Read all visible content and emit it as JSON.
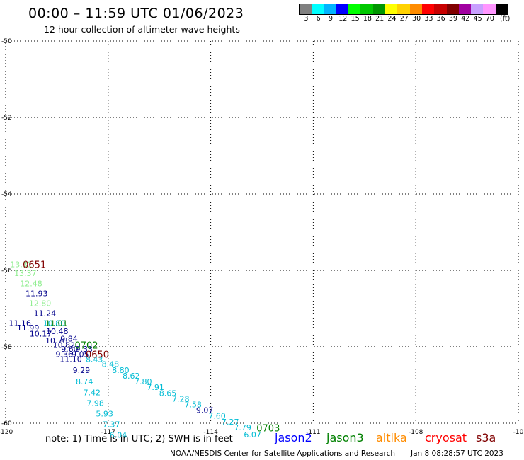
{
  "title": "00:00 – 11:59 UTC 01/06/2023",
  "subtitle": "12 hour collection of altimeter wave heights",
  "legend": {
    "colors": [
      "#808080",
      "#00ffff",
      "#00b4ff",
      "#0000ff",
      "#00ff00",
      "#00c800",
      "#009600",
      "#ffff00",
      "#ffd200",
      "#ff8c00",
      "#ff0000",
      "#c80000",
      "#800000",
      "#a000a0",
      "#c8a0ff",
      "#ff96ff",
      "#000000"
    ],
    "labels": [
      "3",
      "6",
      "9",
      "12",
      "15",
      "18",
      "21",
      "24",
      "27",
      "30",
      "33",
      "36",
      "39",
      "42",
      "45",
      "70",
      "(ft)"
    ]
  },
  "axes": {
    "x_ticks": [
      "-120",
      "-117",
      "-114",
      "-111",
      "-108",
      "-10"
    ],
    "y_ticks": [
      "-50",
      "-52",
      "-54",
      "-56",
      "-58",
      "-60"
    ]
  },
  "map_data": {
    "readings": [
      {
        "text": "13.31",
        "color": "#90ee90",
        "lon": -119.87,
        "lat": -55.84
      },
      {
        "text": "13.37",
        "color": "#90ee90",
        "lon": -119.75,
        "lat": -56.07
      },
      {
        "text": "12.48",
        "color": "#90ee90",
        "lon": -119.58,
        "lat": -56.34
      },
      {
        "text": "11.93",
        "color": "#00008b",
        "lon": -119.42,
        "lat": -56.6
      },
      {
        "text": "12.80",
        "color": "#90ee90",
        "lon": -119.32,
        "lat": -56.86
      },
      {
        "text": "11.24",
        "color": "#00008b",
        "lon": -119.18,
        "lat": -57.12
      },
      {
        "text": "11.16",
        "color": "#00008b",
        "lon": -119.91,
        "lat": -57.38
      },
      {
        "text": "10.80",
        "color": "#00bcd4",
        "lon": -118.91,
        "lat": -57.38
      },
      {
        "text": "11.01",
        "color": "#008000",
        "lon": -118.84,
        "lat": -57.38
      },
      {
        "text": "11.99",
        "color": "#00008b",
        "lon": -119.67,
        "lat": -57.5
      },
      {
        "text": "10.48",
        "color": "#00008b",
        "lon": -118.82,
        "lat": -57.59
      },
      {
        "text": "10.17",
        "color": "#00008b",
        "lon": -119.3,
        "lat": -57.66
      },
      {
        "text": "10.78",
        "color": "#00008b",
        "lon": -118.84,
        "lat": -57.83
      },
      {
        "text": "9.84",
        "color": "#00008b",
        "lon": -118.4,
        "lat": -57.79
      },
      {
        "text": "10.82",
        "color": "#00008b",
        "lon": -118.62,
        "lat": -57.95
      },
      {
        "text": "9.60",
        "color": "#00008b",
        "lon": -118.38,
        "lat": -58.06
      },
      {
        "text": "9.33",
        "color": "#00008b",
        "lon": -117.96,
        "lat": -58.06
      },
      {
        "text": "9.36",
        "color": "#00008b",
        "lon": -118.54,
        "lat": -58.19
      },
      {
        "text": "9.05",
        "color": "#00008b",
        "lon": -118.07,
        "lat": -58.19
      },
      {
        "text": "8.43",
        "color": "#00bcd4",
        "lon": -117.66,
        "lat": -58.32
      },
      {
        "text": "8.48",
        "color": "#00bcd4",
        "lon": -117.19,
        "lat": -58.45
      },
      {
        "text": "11.10",
        "color": "#00008b",
        "lon": -118.42,
        "lat": -58.32
      },
      {
        "text": "8.80",
        "color": "#00bcd4",
        "lon": -116.89,
        "lat": -58.61
      },
      {
        "text": "9.29",
        "color": "#00008b",
        "lon": -118.04,
        "lat": -58.61
      },
      {
        "text": "8.62",
        "color": "#00bcd4",
        "lon": -116.58,
        "lat": -58.76
      },
      {
        "text": "8.74",
        "color": "#00bcd4",
        "lon": -117.95,
        "lat": -58.91
      },
      {
        "text": "7.80",
        "color": "#00bcd4",
        "lon": -116.23,
        "lat": -58.91
      },
      {
        "text": "7.91",
        "color": "#00bcd4",
        "lon": -115.87,
        "lat": -59.06
      },
      {
        "text": "7.42",
        "color": "#00bcd4",
        "lon": -117.73,
        "lat": -59.19
      },
      {
        "text": "8.65",
        "color": "#00bcd4",
        "lon": -115.51,
        "lat": -59.21
      },
      {
        "text": "7.28",
        "color": "#00bcd4",
        "lon": -115.13,
        "lat": -59.36
      },
      {
        "text": "7.98",
        "color": "#00bcd4",
        "lon": -117.63,
        "lat": -59.47
      },
      {
        "text": "7.58",
        "color": "#00bcd4",
        "lon": -114.77,
        "lat": -59.51
      },
      {
        "text": "9.07",
        "color": "#00008b",
        "lon": -114.43,
        "lat": -59.66
      },
      {
        "text": "5.93",
        "color": "#00bcd4",
        "lon": -117.36,
        "lat": -59.75
      },
      {
        "text": "7.60",
        "color": "#00bcd4",
        "lon": -114.07,
        "lat": -59.81
      },
      {
        "text": "7.37",
        "color": "#00bcd4",
        "lon": -117.16,
        "lat": -60.03
      },
      {
        "text": "7.27",
        "color": "#00bcd4",
        "lon": -113.68,
        "lat": -59.96
      },
      {
        "text": "7.79",
        "color": "#00bcd4",
        "lon": -113.32,
        "lat": -60.11
      },
      {
        "text": "6.04",
        "color": "#00bcd4",
        "lon": -116.96,
        "lat": -60.31
      },
      {
        "text": "6.07",
        "color": "#00bcd4",
        "lon": -113.03,
        "lat": -60.3
      }
    ],
    "pass_times": [
      {
        "text": "0651",
        "color": "#800000",
        "lon": -119.5,
        "lat": -55.84
      },
      {
        "text": "0702",
        "color": "#008000",
        "lon": -117.98,
        "lat": -57.95
      },
      {
        "text": "0650",
        "color": "#800000",
        "lon": -117.66,
        "lat": -58.19
      },
      {
        "text": "0703",
        "color": "#008000",
        "lon": -112.66,
        "lat": -60.12
      }
    ]
  },
  "footer": {
    "note": "note: 1) Time is in UTC; 2) SWH is in feet",
    "satellites": [
      {
        "name": "jason2",
        "color": "#0000ff"
      },
      {
        "name": "jason3",
        "color": "#008000"
      },
      {
        "name": "altika",
        "color": "#ff8c00"
      },
      {
        "name": "cryosat",
        "color": "#ff0000"
      },
      {
        "name": "s3a",
        "color": "#800000"
      }
    ],
    "credit": "NOAA/NESDIS Center for Satellite Applications and Research",
    "timestamp": "Jan  8 08:28:57 UTC 2023"
  }
}
